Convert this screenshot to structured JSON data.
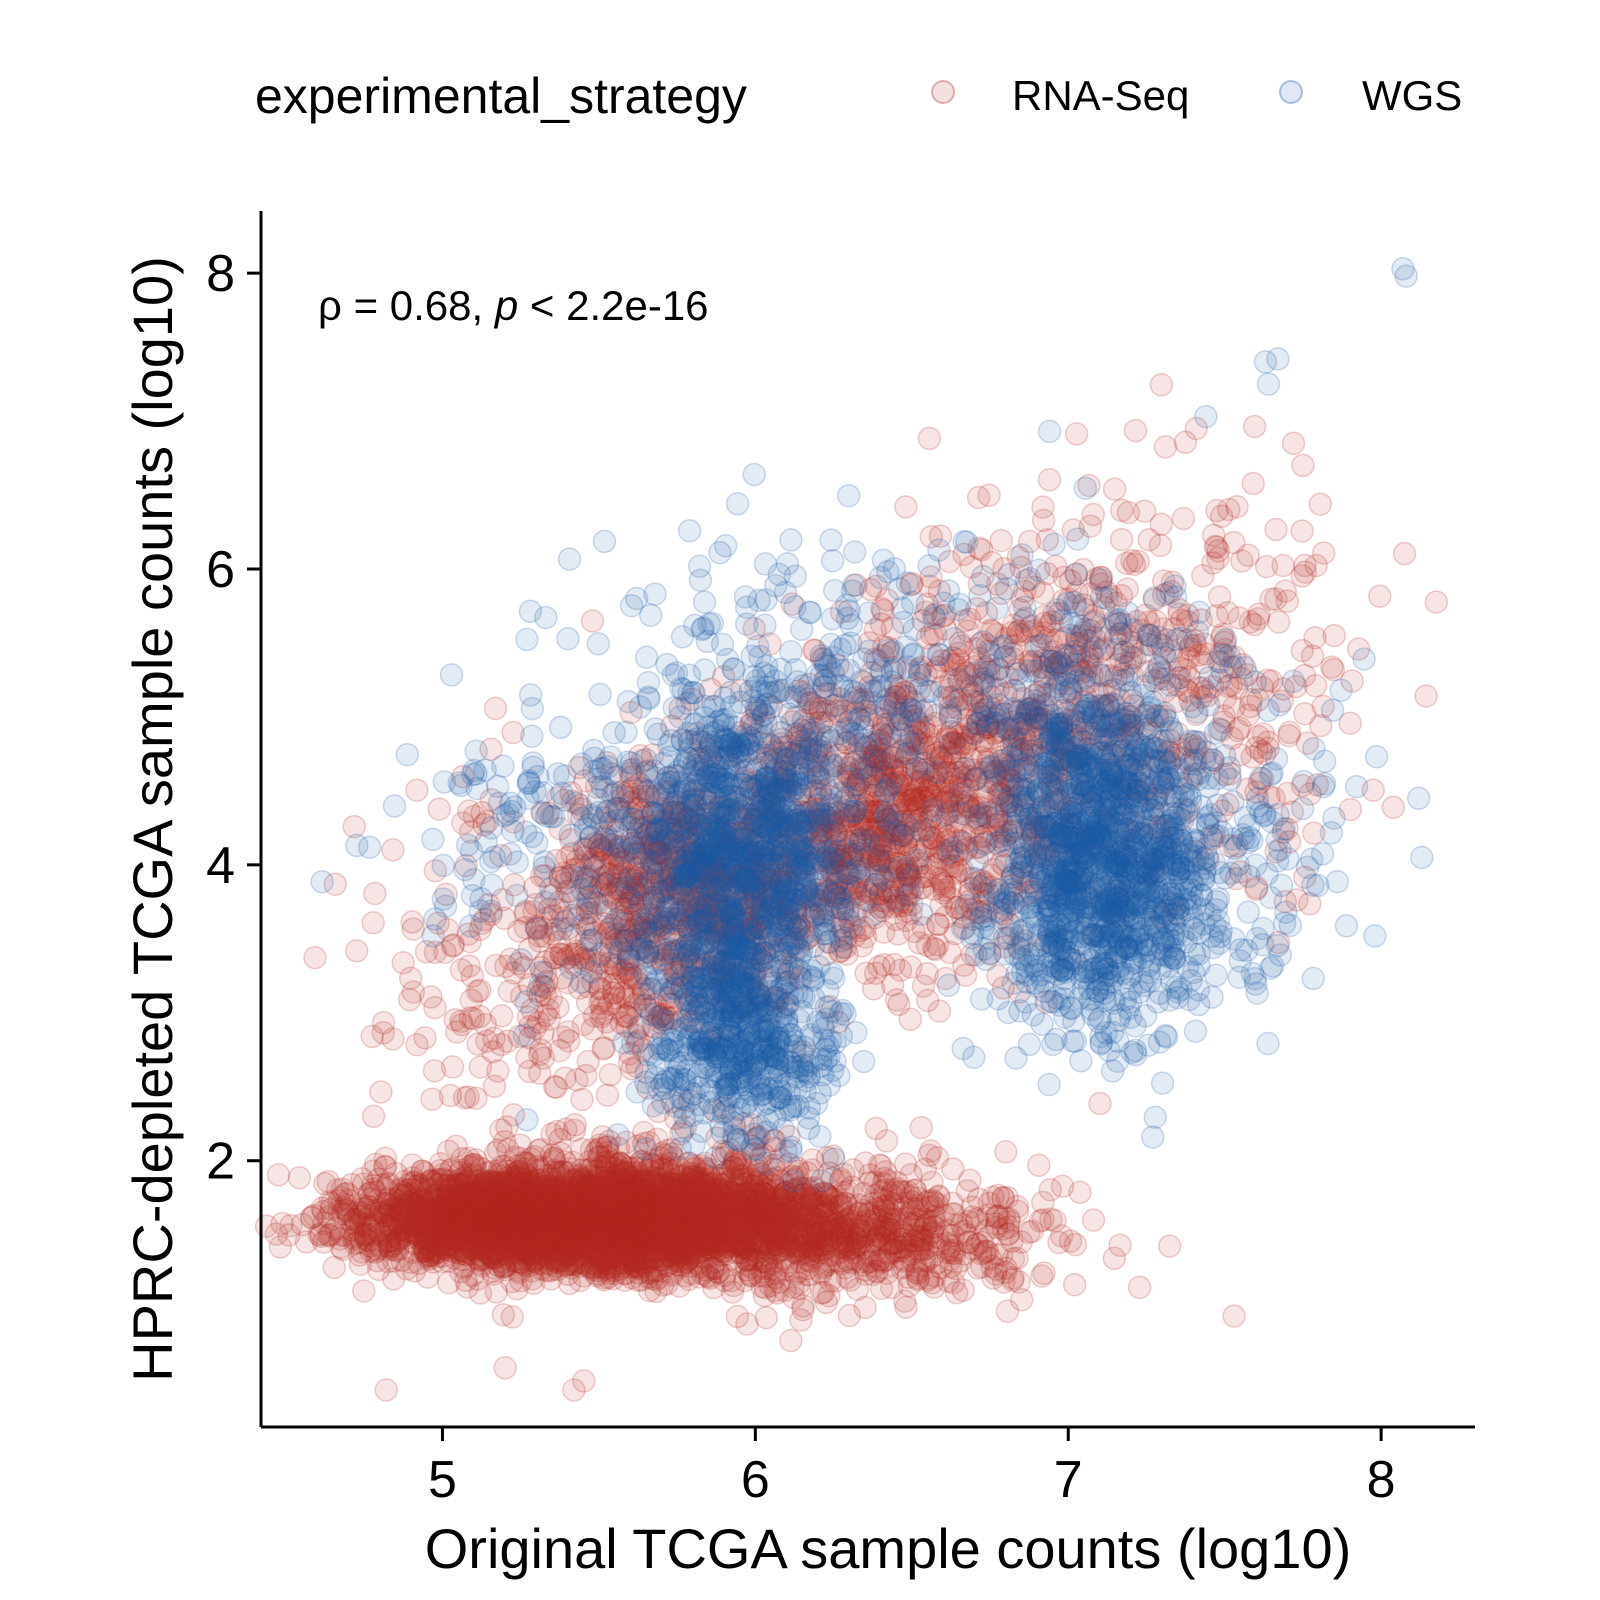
{
  "chart_data": {
    "type": "scatter",
    "title": "",
    "xlabel": "Original TCGA sample counts (log10)",
    "ylabel": "HPRC-depleted TCGA sample counts (log10)",
    "xlim": [
      4.42,
      8.3
    ],
    "ylim": [
      0.2,
      8.42
    ],
    "x_ticks": [
      "5",
      "6",
      "7",
      "8"
    ],
    "y_ticks": [
      "2",
      "4",
      "6",
      "8"
    ],
    "x_tick_values": [
      5,
      6,
      7,
      8
    ],
    "y_tick_values": [
      2,
      4,
      6,
      8
    ],
    "grid": false,
    "legend": {
      "title": "experimental_strategy",
      "position": "top",
      "entries": [
        "RNA-Seq",
        "WGS"
      ]
    },
    "annotation": {
      "rho_symbol": "ρ",
      "rho_text": " = 0.68, ",
      "p_symbol": "p",
      "p_text": " < 2.2e-16"
    },
    "marker": {
      "shape": "circle",
      "opacity": 0.12
    },
    "series": [
      {
        "name": "RNA-Seq",
        "color": "#B22A1F",
        "clusters": [
          {
            "x": 5.3,
            "y": 1.6,
            "sx": 0.28,
            "sy": 0.16,
            "n": 2600
          },
          {
            "x": 5.7,
            "y": 1.65,
            "sx": 0.3,
            "sy": 0.2,
            "n": 1400
          },
          {
            "x": 6.25,
            "y": 1.5,
            "sx": 0.35,
            "sy": 0.2,
            "n": 700
          },
          {
            "x": 5.75,
            "y": 3.8,
            "sx": 0.22,
            "sy": 0.45,
            "n": 700
          },
          {
            "x": 6.4,
            "y": 4.3,
            "sx": 0.3,
            "sy": 0.5,
            "n": 900
          },
          {
            "x": 6.95,
            "y": 5.1,
            "sx": 0.35,
            "sy": 0.6,
            "n": 650
          },
          {
            "x": 5.3,
            "y": 3.2,
            "sx": 0.25,
            "sy": 0.6,
            "n": 250
          },
          {
            "x": 7.5,
            "y": 5.2,
            "sx": 0.25,
            "sy": 0.8,
            "n": 120
          }
        ],
        "points": [
          {
            "x": 4.82,
            "y": 0.45
          },
          {
            "x": 5.42,
            "y": 0.45
          },
          {
            "x": 5.2,
            "y": 0.6
          },
          {
            "x": 7.75,
            "y": 6.7
          },
          {
            "x": 7.72,
            "y": 6.85
          },
          {
            "x": 7.85,
            "y": 5.55
          },
          {
            "x": 7.53,
            "y": 0.95
          },
          {
            "x": 4.62,
            "y": 1.45
          },
          {
            "x": 4.78,
            "y": 2.3
          }
        ]
      },
      {
        "name": "WGS",
        "color": "#1A5BA8",
        "clusters": [
          {
            "x": 5.95,
            "y": 4.1,
            "sx": 0.2,
            "sy": 0.45,
            "n": 900
          },
          {
            "x": 5.95,
            "y": 2.9,
            "sx": 0.15,
            "sy": 0.4,
            "n": 600
          },
          {
            "x": 7.1,
            "y": 3.9,
            "sx": 0.18,
            "sy": 0.5,
            "n": 1100
          },
          {
            "x": 7.05,
            "y": 5.0,
            "sx": 0.2,
            "sy": 0.5,
            "n": 300
          },
          {
            "x": 6.2,
            "y": 5.2,
            "sx": 0.3,
            "sy": 0.5,
            "n": 300
          },
          {
            "x": 7.5,
            "y": 4.3,
            "sx": 0.2,
            "sy": 0.6,
            "n": 150
          },
          {
            "x": 5.3,
            "y": 4.2,
            "sx": 0.25,
            "sy": 0.5,
            "n": 120
          }
        ],
        "points": [
          {
            "x": 8.07,
            "y": 8.03
          },
          {
            "x": 8.08,
            "y": 7.98
          },
          {
            "x": 7.63,
            "y": 7.4
          },
          {
            "x": 7.67,
            "y": 7.42
          },
          {
            "x": 7.64,
            "y": 7.25
          },
          {
            "x": 8.12,
            "y": 4.45
          },
          {
            "x": 8.13,
            "y": 4.05
          },
          {
            "x": 7.98,
            "y": 3.52
          },
          {
            "x": 6.94,
            "y": 6.93
          },
          {
            "x": 7.44,
            "y": 7.03
          },
          {
            "x": 4.97,
            "y": 3.52
          },
          {
            "x": 5.01,
            "y": 3.72
          },
          {
            "x": 5.1,
            "y": 3.9
          },
          {
            "x": 5.29,
            "y": 4.66
          },
          {
            "x": 5.22,
            "y": 4.36
          },
          {
            "x": 7.27,
            "y": 2.16
          }
        ]
      }
    ]
  }
}
